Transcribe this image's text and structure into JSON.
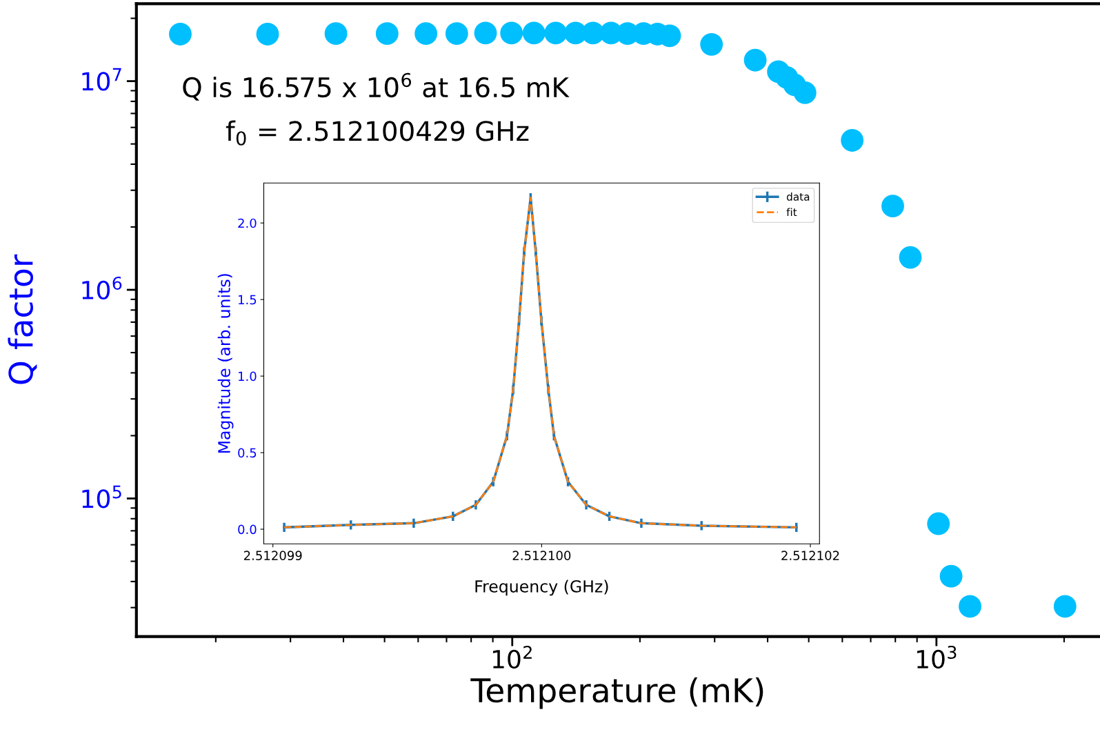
{
  "chart_data": [
    {
      "type": "scatter",
      "xlabel": "Temperature (mK)",
      "ylabel": "Q factor",
      "log": "xy",
      "marker": "circle",
      "color": "#00bfff",
      "x": [
        16.5,
        26.5,
        38.4,
        50.7,
        62.6,
        74.0,
        86.5,
        99.6,
        112.5,
        126.6,
        141,
        155,
        171,
        187,
        204,
        220,
        235,
        295,
        374,
        424,
        444,
        463,
        490,
        633,
        789,
        868,
        1011,
        1083,
        1200,
        2010
      ],
      "values": [
        16800000,
        16800000,
        16900000,
        16900000,
        16900000,
        16900000,
        17000000,
        17000000,
        17000000,
        17000000,
        17000000,
        17000000,
        17000000,
        16900000,
        16900000,
        16800000,
        16500000,
        15000000,
        12600000,
        11100000,
        10400000,
        9600000,
        8800000,
        5200000,
        2520000,
        1430000,
        75700,
        42400,
        30400,
        30400
      ],
      "xlim": [
        13,
        2430
      ],
      "ylim": [
        21800,
        23500000
      ],
      "xticks": [
        {
          "value": 100,
          "label": "10$^{2}$"
        },
        {
          "value": 1000,
          "label": "10$^{3}$"
        }
      ],
      "yticks": [
        {
          "value": 100000,
          "label": "10$^{5}$"
        },
        {
          "value": 1000000,
          "label": "10$^{6}$"
        },
        {
          "value": 10000000,
          "label": "10$^{7}$"
        }
      ],
      "annotations": [
        "Q is 16.575 x 10$^{6}$ at 16.5 mK",
        "f$_{0}$ = 2.512100429 GHz"
      ]
    },
    {
      "type": "line",
      "xlabel": "Frequency (GHz)",
      "ylabel": "Magnitude (arb. units)",
      "legend": "top right",
      "x": [
        2.512099542,
        2.51209979,
        2.512100024,
        2.51210017,
        2.512100255,
        2.51210032,
        2.512100371,
        2.512100394,
        2.512100416,
        2.512100435,
        2.512100459,
        2.512100478,
        2.512100499,
        2.512100525,
        2.512100546,
        2.512100598,
        2.512100666,
        2.512100752,
        2.512100871,
        2.512101095,
        2.512101448
      ],
      "series": [
        {
          "name": "data",
          "color": "#1f77b4",
          "line_style": "solid",
          "values": [
            0.012,
            0.028,
            0.039,
            0.084,
            0.159,
            0.31,
            0.61,
            0.911,
            1.362,
            1.812,
            2.165,
            1.812,
            1.362,
            0.911,
            0.61,
            0.31,
            0.159,
            0.084,
            0.039,
            0.023,
            0.012
          ],
          "errors": [
            0.03,
            0.03,
            0.03,
            0.03,
            0.03,
            0.03,
            0.03,
            0.03,
            0.03,
            0.03,
            0.03,
            0.03,
            0.03,
            0.03,
            0.03,
            0.03,
            0.03,
            0.03,
            0.03,
            0.03,
            0.03
          ]
        },
        {
          "name": "fit",
          "color": "#ff7f0e",
          "line_style": "dashed",
          "values": [
            0.012,
            0.028,
            0.039,
            0.084,
            0.159,
            0.31,
            0.61,
            0.911,
            1.362,
            1.812,
            2.165,
            1.812,
            1.362,
            0.911,
            0.61,
            0.31,
            0.159,
            0.084,
            0.039,
            0.023,
            0.012
          ]
        }
      ],
      "xlim": [
        2.512099466,
        2.512101534
      ],
      "ylim": [
        -0.096,
        2.261
      ],
      "xticks": [
        {
          "value": 2.5120995,
          "label": "2.512099"
        },
        {
          "value": 2.5121005,
          "label": "2.512100"
        },
        {
          "value": 2.5121015,
          "label": "2.512102"
        }
      ],
      "yticks": [
        {
          "value": 0.0,
          "label": "0.0"
        },
        {
          "value": 0.5,
          "label": "0.5"
        },
        {
          "value": 1.0,
          "label": "1.0"
        },
        {
          "value": 1.5,
          "label": "1.5"
        },
        {
          "value": 2.0,
          "label": "2.0"
        }
      ]
    }
  ]
}
